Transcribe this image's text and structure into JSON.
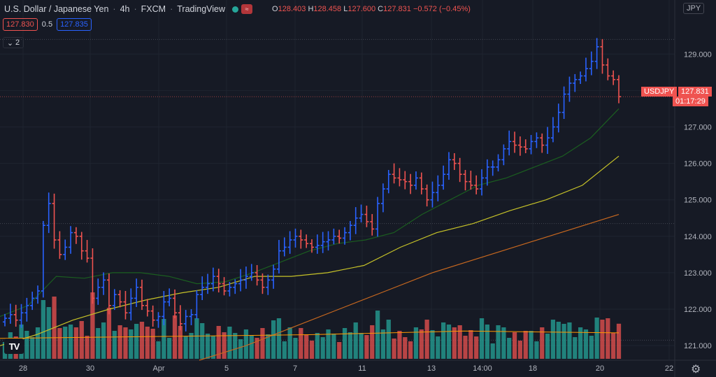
{
  "header": {
    "symbol": "U.S. Dollar / Japanese Yen",
    "interval": "4h",
    "exchange": "FXCM",
    "source": "TradingView",
    "ohlc": {
      "o_label": "O",
      "o": "128.403",
      "h_label": "H",
      "h": "128.458",
      "l_label": "L",
      "l": "127.600",
      "c_label": "C",
      "c": "127.831",
      "change": "−0.572 (−0.45%)"
    }
  },
  "trade": {
    "sell": "127.830",
    "spread": "0.5",
    "buy": "127.835"
  },
  "indicators": {
    "count": "2"
  },
  "currency": "JPY",
  "price_tag": {
    "symbol": "USDJPY",
    "price": "127.831",
    "countdown": "01:17:29"
  },
  "colors": {
    "up": "#2962ff",
    "down": "#ef5350",
    "background": "#161a25",
    "ma_short": "#1b5e20",
    "ma_mid": "#c6c228",
    "ma_long": "#c8681f",
    "vol_up": "#26a69a",
    "vol_down": "#ef5350"
  },
  "icons": {
    "logo": "tradingview-logo",
    "settings": "gear-icon",
    "collapse": "chevron-down-icon"
  },
  "chart_data": {
    "type": "bar",
    "series_kind": "ohlc",
    "ylim": [
      120.6,
      129.6
    ],
    "y_ticks": [
      "129.000",
      "128.000",
      "127.000",
      "126.000",
      "125.000",
      "124.000",
      "123.000",
      "122.000",
      "121.000"
    ],
    "x_ticks": [
      "28",
      "30",
      "Apr",
      "5",
      "7",
      "11",
      "13",
      "14:00",
      "18",
      "20",
      "22"
    ],
    "closes": [
      121.75,
      121.85,
      121.7,
      121.9,
      122.1,
      122.3,
      122.5,
      124.3,
      124.9,
      123.9,
      123.5,
      123.7,
      124.1,
      124.0,
      123.6,
      123.4,
      122.3,
      122.6,
      122.8,
      122.1,
      122.4,
      122.2,
      121.9,
      122.3,
      122.6,
      122.1,
      121.95,
      121.7,
      121.8,
      122.2,
      122.3,
      121.9,
      121.6,
      121.8,
      121.85,
      122.4,
      122.6,
      122.7,
      122.9,
      122.7,
      122.5,
      122.6,
      122.7,
      122.8,
      122.9,
      123.0,
      122.8,
      122.6,
      122.8,
      123.1,
      123.6,
      123.7,
      123.9,
      124.0,
      123.9,
      123.8,
      123.7,
      123.75,
      123.85,
      123.9,
      124.0,
      123.95,
      124.1,
      124.3,
      124.5,
      124.6,
      124.4,
      124.2,
      124.9,
      125.3,
      125.7,
      125.6,
      125.55,
      125.5,
      125.4,
      125.6,
      125.3,
      125.0,
      125.2,
      125.4,
      125.7,
      126.1,
      126.0,
      125.7,
      125.5,
      125.4,
      125.3,
      125.6,
      125.9,
      125.9,
      126.1,
      126.4,
      126.6,
      126.5,
      126.45,
      126.4,
      126.6,
      126.7,
      126.5,
      126.7,
      127.0,
      127.4,
      127.9,
      128.2,
      128.3,
      128.4,
      128.6,
      128.8,
      129.2,
      128.7,
      128.4,
      128.3,
      127.83
    ],
    "volume_ma": [
      121.2,
      121.25,
      121.3,
      121.4,
      121.35
    ],
    "moving_averages": [
      {
        "name": "",
        "color": "#1b5e20",
        "values": [
          121.8,
          122.1,
          122.9,
          122.85,
          123.0,
          123.0,
          122.9,
          122.7,
          122.75,
          123.0,
          123.3,
          123.6,
          123.8,
          123.9,
          124.1,
          124.6,
          125.0,
          125.4,
          125.6,
          125.9,
          126.2,
          126.7,
          127.5
        ]
      },
      {
        "name": "",
        "color": "#c6c228",
        "values": [
          121.0,
          121.3,
          121.7,
          122.0,
          122.25,
          122.45,
          122.6,
          122.9,
          122.9,
          123.0,
          123.2,
          123.7,
          124.1,
          124.35,
          124.7,
          125.0,
          125.4,
          126.2
        ]
      },
      {
        "name": "",
        "color": "#c8681f",
        "values": [
          120.6,
          121.0,
          121.5,
          122.0,
          122.5,
          123.0,
          123.4,
          123.8,
          124.2,
          124.6
        ]
      }
    ]
  }
}
